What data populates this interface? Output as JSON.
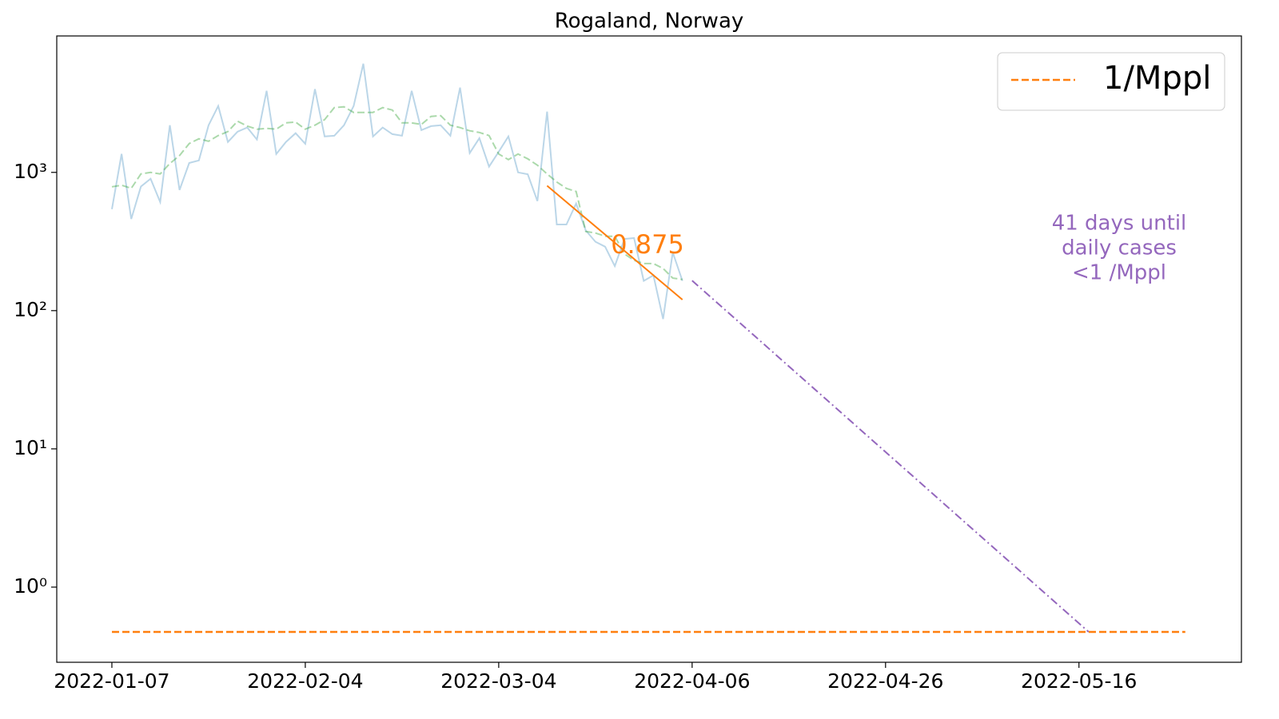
{
  "chart_data": {
    "type": "line",
    "title": "Rogaland, Norway",
    "log_y": true,
    "xlim": [
      -5.7,
      116.8
    ],
    "xticks": [
      {
        "value": 0,
        "label": "2022-01-07"
      },
      {
        "value": 20,
        "label": "2022-02-04"
      },
      {
        "value": 40,
        "label": "2022-03-04"
      },
      {
        "value": 60,
        "label": "2022-04-06"
      },
      {
        "value": 80,
        "label": "2022-04-26"
      },
      {
        "value": 100,
        "label": "2022-05-16"
      }
    ],
    "ylim": [
      0.286,
      9700
    ],
    "yticks": [
      {
        "value": 1,
        "label": "10⁰"
      },
      {
        "value": 10,
        "label": "10¹"
      },
      {
        "value": 100,
        "label": "10²"
      },
      {
        "value": 1000,
        "label": "10³"
      }
    ],
    "series": [
      {
        "color": "#1f77b4",
        "opacity": 0.3,
        "dash": "solid",
        "x": [
          0,
          1,
          2,
          3,
          4,
          5,
          6,
          7,
          8,
          9,
          10,
          11,
          12,
          13,
          14,
          15,
          16,
          17,
          18,
          19,
          20,
          21,
          22,
          23,
          24,
          25,
          26,
          27,
          28,
          29,
          30,
          31,
          32,
          33,
          34,
          35,
          36,
          37,
          38,
          39,
          40,
          41,
          42,
          43,
          44,
          45,
          46,
          47,
          48,
          49,
          50,
          51,
          52,
          53,
          54,
          55,
          56,
          57,
          58,
          59
        ],
        "values": [
          542,
          1360,
          460,
          790,
          900,
          610,
          2190,
          746,
          1170,
          1220,
          2190,
          3020,
          1660,
          1970,
          2110,
          1730,
          3890,
          1360,
          1660,
          1920,
          1610,
          4000,
          1820,
          1840,
          2190,
          3020,
          6110,
          1820,
          2110,
          1890,
          1840,
          3890,
          2020,
          2160,
          2190,
          1840,
          4100,
          1380,
          1770,
          1100,
          1410,
          1820,
          1000,
          970,
          620,
          2750,
          420,
          420,
          595,
          380,
          315,
          290,
          210,
          330,
          335,
          164,
          180,
          87,
          264,
          164
        ]
      },
      {
        "color": "#2ca02c",
        "opacity": 0.4,
        "dash": "dashed",
        "x": [
          0,
          1,
          2,
          3,
          4,
          5,
          6,
          7,
          8,
          9,
          10,
          11,
          12,
          13,
          14,
          15,
          16,
          17,
          18,
          19,
          20,
          21,
          22,
          23,
          24,
          25,
          26,
          27,
          28,
          29,
          30,
          31,
          32,
          33,
          34,
          35,
          36,
          37,
          38,
          39,
          40,
          41,
          42,
          43,
          44,
          45,
          46,
          47,
          48,
          49,
          50,
          51,
          52,
          53,
          54,
          55,
          56,
          57,
          58,
          59
        ],
        "values": [
          787,
          808,
          766,
          974,
          1000,
          974,
          1158,
          1323,
          1615,
          1750,
          1680,
          1845,
          1972,
          2344,
          2163,
          2052,
          2080,
          2052,
          2281,
          2312,
          2052,
          2193,
          2409,
          2940,
          2979,
          2715,
          2715,
          2715,
          2940,
          2825,
          2281,
          2281,
          2222,
          2540,
          2572,
          2193,
          2108,
          1998,
          1945,
          1845,
          1358,
          1237,
          1358,
          1254,
          1127,
          974,
          852,
          766,
          727,
          374,
          364,
          345,
          345,
          257,
          231,
          219,
          219,
          202,
          172,
          168
        ]
      },
      {
        "color": "#ff7f0e",
        "opacity": 1,
        "dash": "solid",
        "x": [
          45,
          59
        ],
        "values": [
          800,
          120
        ]
      },
      {
        "color": "#9467bd",
        "opacity": 1,
        "dash": "dashdot",
        "x": [
          60,
          101
        ],
        "values": [
          165,
          0.474
        ]
      },
      {
        "name": "1/Mppl",
        "color": "#ff7f0e",
        "opacity": 1,
        "dash": "dashed",
        "x": [
          0,
          111
        ],
        "values": [
          0.474,
          0.474
        ]
      }
    ],
    "legend": "upper right",
    "annotations": [
      {
        "lines": [
          "0.875"
        ],
        "color": "#ff7f0e"
      },
      {
        "lines": [
          "41 days until",
          "daily cases",
          "<1 /Mppl"
        ],
        "color": "#9467bd"
      }
    ]
  }
}
